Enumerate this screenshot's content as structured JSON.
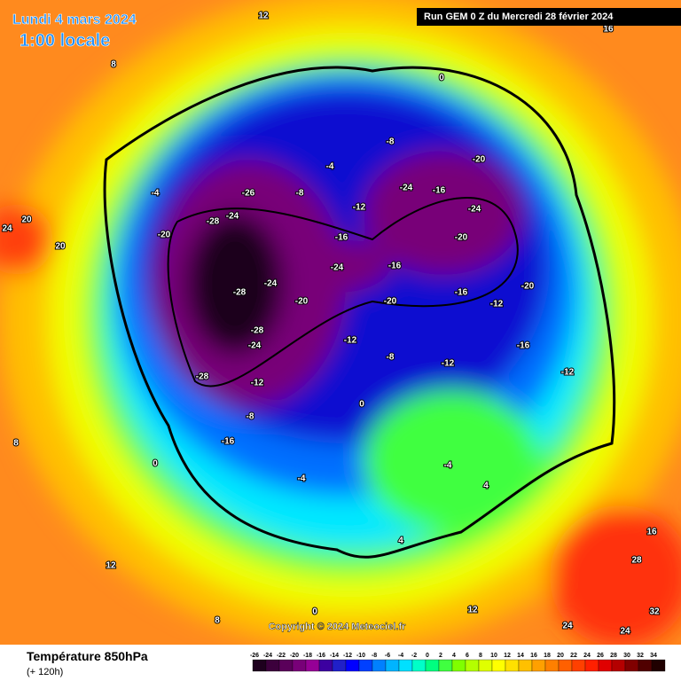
{
  "header": {
    "date": "Lundi 4 mars 2024",
    "time": "1:00 locale",
    "run": "Run GEM 0 Z du Mercredi 28 février 2024"
  },
  "footer": {
    "title": "Température 850hPa",
    "subtitle": "(+ 120h)",
    "copyright": "Copyright © 2024 Meteociel.fr"
  },
  "legend": {
    "ticks": [
      -26,
      -24,
      -22,
      -20,
      -18,
      -16,
      -14,
      -12,
      -10,
      -8,
      -6,
      -4,
      -2,
      0,
      2,
      4,
      6,
      8,
      10,
      12,
      14,
      16,
      18,
      20,
      22,
      24,
      26,
      28,
      30,
      32,
      34
    ],
    "colors": [
      "#1e001e",
      "#3c003c",
      "#5a005a",
      "#780078",
      "#960096",
      "#3c00a0",
      "#2020c8",
      "#0000ff",
      "#0040ff",
      "#0080ff",
      "#00b4ff",
      "#00e0ff",
      "#00ffc8",
      "#00ff80",
      "#40ff40",
      "#80ff00",
      "#b4ff00",
      "#e0ff00",
      "#ffff00",
      "#ffe000",
      "#ffc000",
      "#ffa000",
      "#ff8000",
      "#ff6000",
      "#ff4000",
      "#ff2000",
      "#e00000",
      "#b40000",
      "#800000",
      "#500000",
      "#200000"
    ]
  },
  "map_labels": [
    -28,
    -28,
    -28,
    -28,
    -24,
    -24,
    -24,
    -24,
    -20,
    -20,
    -20,
    -20,
    -20,
    -20,
    -24,
    -24,
    -16,
    -16,
    -16,
    -16,
    -16,
    -12,
    -12,
    -12,
    -12,
    -12,
    -12,
    -8,
    -8,
    -8,
    -8,
    -4,
    -4,
    -4,
    -4,
    0,
    0,
    0,
    0,
    4,
    4,
    8,
    8,
    12,
    12,
    12,
    16,
    16,
    20,
    20,
    24,
    24,
    24,
    28,
    32,
    -26,
    -16,
    8
  ]
}
